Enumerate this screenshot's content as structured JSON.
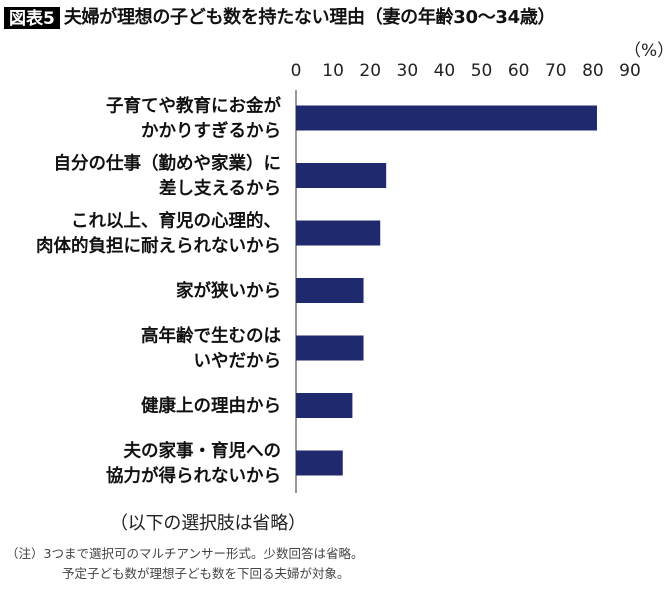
{
  "header": {
    "badge": "図表5",
    "title": "夫婦が理想の子ども数を持たない理由（妻の年齢30〜34歳）"
  },
  "unit": "（%）",
  "omitted_note": "（以下の選択肢は省略）",
  "footnote": {
    "line1": "（注）3つまで選択可のマルチアンサー形式。少数回答は省略。",
    "line2": "予定子ども数が理想子ども数を下回る夫婦が対象。"
  },
  "colors": {
    "bar": "#1f2a6e",
    "axis": "#333333"
  },
  "chart_data": {
    "type": "bar",
    "orientation": "horizontal",
    "xlim": [
      0,
      90
    ],
    "xticks": [
      0,
      10,
      20,
      30,
      40,
      50,
      60,
      70,
      80,
      90
    ],
    "x_axis_position": "top",
    "grid": false,
    "categories": [
      [
        "子育てや教育にお金が",
        "かかりすぎるから"
      ],
      [
        "自分の仕事（勤めや家業）に",
        "差し支えるから"
      ],
      [
        "これ以上、育児の心理的、",
        "肉体的負担に耐えられないから"
      ],
      [
        "家が狭いから"
      ],
      [
        "高年齢で生むのは",
        "いやだから"
      ],
      [
        "健康上の理由から"
      ],
      [
        "夫の家事・育児への",
        "協力が得られないから"
      ]
    ],
    "values": [
      81.1,
      24.3,
      22.7,
      18.2,
      18.2,
      15.2,
      12.6
    ]
  }
}
